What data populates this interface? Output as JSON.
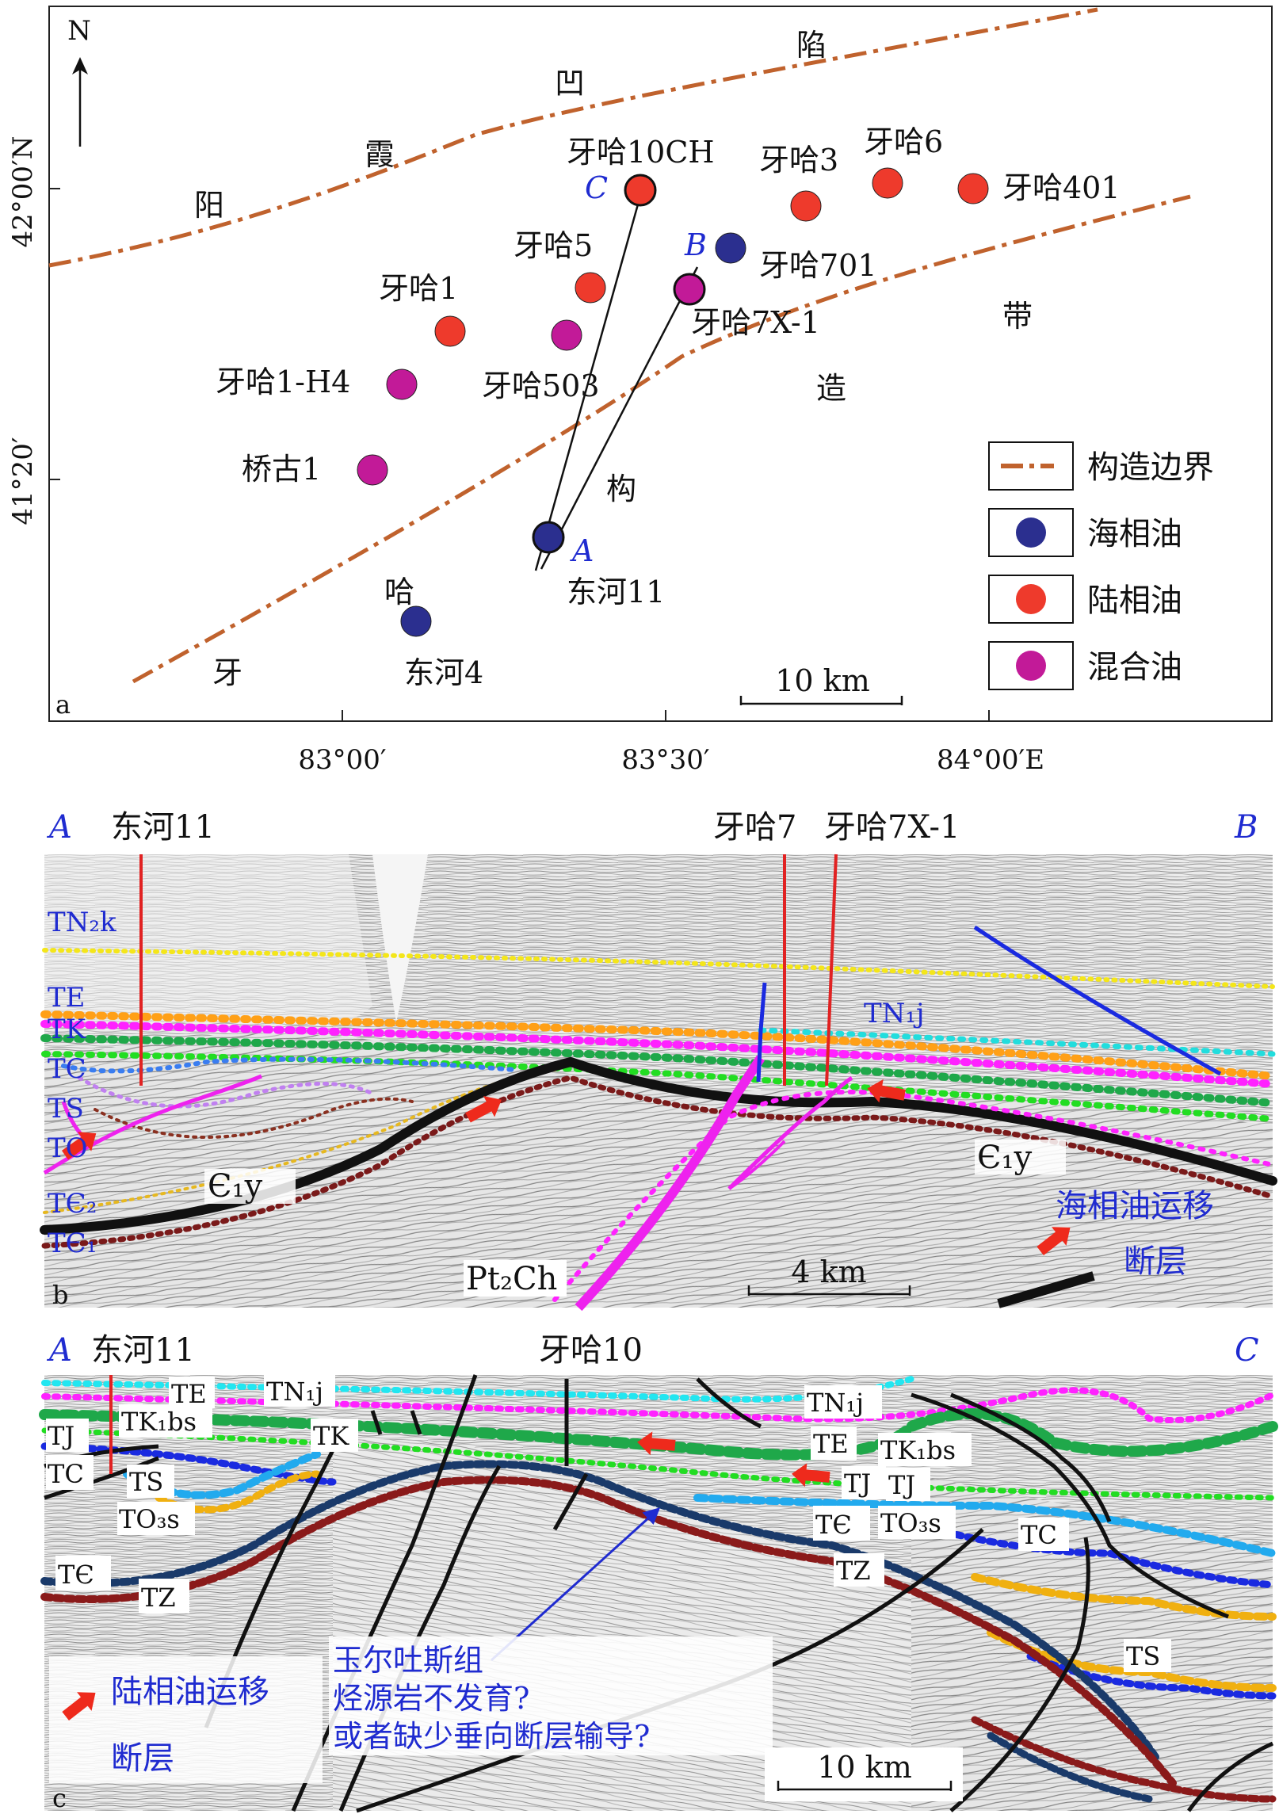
{
  "panel_a": {
    "panel_label": "a",
    "north": "N",
    "lat_ticks": [
      "42°00′N",
      "41°20′"
    ],
    "lon_ticks": [
      "83°00′",
      "83°30′",
      "84°00′E"
    ],
    "region_chars": [
      "阳",
      "霞",
      "凹",
      "陷",
      "带",
      "造",
      "构",
      "哈",
      "牙"
    ],
    "wells": {
      "yaha10ch": "牙哈10CH",
      "yaha3": "牙哈3",
      "yaha6": "牙哈6",
      "yaha401": "牙哈401",
      "yaha5": "牙哈5",
      "yaha701": "牙哈701",
      "yaha7x1": "牙哈7X-1",
      "yaha1": "牙哈1",
      "yaha503": "牙哈503",
      "yaha1h4": "牙哈1-H4",
      "qiaogu1": "桥古1",
      "donghe11": "东河11",
      "donghe4": "东河4"
    },
    "points": {
      "A": "A",
      "B": "B",
      "C": "C"
    },
    "scale": "10 km",
    "legend": {
      "boundary": "构造边界",
      "marine": "海相油",
      "terrestrial": "陆相油",
      "mixed": "混合油"
    },
    "colors": {
      "boundary": "#c0622d",
      "marine": "#2b2f8f",
      "terrestrial": "#ee3a2c",
      "mixed": "#c21a98"
    }
  },
  "panel_b": {
    "panel_label": "b",
    "end_left": "A",
    "end_right": "B",
    "wells": {
      "w1": "东河11",
      "w2": "牙哈7",
      "w3": "牙哈7X-1"
    },
    "horizons": {
      "tn2k": "TN₂k",
      "te": "TE",
      "tk": "TK",
      "tc": "TC",
      "ts": "TS",
      "to": "TO",
      "tc2": "TЄ₂",
      "tc1": "TЄ₁",
      "tn1j": "TN₁j"
    },
    "formations": {
      "c1y_left": "Є₁y",
      "c1y_right": "Є₁y",
      "pt2ch": "Pt₂Ch"
    },
    "scale": "4 km",
    "legend": {
      "migration": "海相油运移",
      "fault": "断层"
    }
  },
  "panel_c": {
    "panel_label": "c",
    "end_left": "A",
    "end_right": "C",
    "wells": {
      "w1": "东河11",
      "w2": "牙哈10"
    },
    "horizons": {
      "te_l": "TE",
      "tn1j_l": "TN₁j",
      "tk1bs_l": "TK₁bs",
      "tj_l": "TJ",
      "tk_l": "TK",
      "tc_l": "TC",
      "ts_l": "TS",
      "to3s_l": "TO₃s",
      "te_cam_l": "TЄ",
      "tz_l": "TZ",
      "tn1j_r": "TN₁j",
      "te_r": "TE",
      "tk1bs_r": "TK₁bs",
      "tj_r1": "TJ",
      "tj_r2": "TJ",
      "te_cam_r": "TЄ",
      "to3s_r": "TO₃s",
      "tc_r": "TC",
      "tz_r": "TZ",
      "ts_r": "TS"
    },
    "note": [
      "玉尔吐斯组",
      "烃源岩不发育?",
      "或者缺少垂向断层输导?"
    ],
    "scale": "10 km",
    "legend": {
      "migration": "陆相油运移",
      "fault": "断层"
    }
  }
}
